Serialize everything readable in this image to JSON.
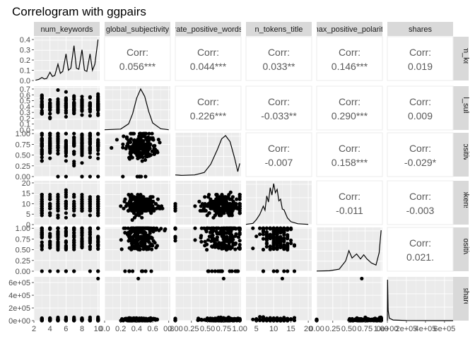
{
  "chart_data": {
    "type": "scatter-matrix",
    "title": "Correlogram with ggpairs",
    "variables": [
      {
        "label_top": "num_keywords",
        "label_right": "num_keywo",
        "range": [
          2,
          10.2
        ],
        "ticks": [
          2,
          4,
          6,
          8,
          10
        ],
        "tick_labels": [
          "2",
          "4",
          "6",
          "8",
          "10"
        ],
        "discrete": true
      },
      {
        "label_top": "global_subjectivity",
        "label_right": "bal_subject",
        "range": [
          0,
          0.82
        ],
        "ticks": [
          0,
          0.2,
          0.4,
          0.6,
          0.8
        ],
        "tick_labels": [
          "0.0",
          "0.2",
          "0.4",
          "0.6",
          "0.8"
        ]
      },
      {
        "label_top": "rate_positive_words",
        "label_right": "_positive_w",
        "range": [
          0,
          1.02
        ],
        "ticks": [
          0,
          0.25,
          0.5,
          0.75,
          1.0
        ],
        "tick_labels": [
          "0.00",
          "0.25",
          "0.50",
          "0.75",
          "1.00"
        ]
      },
      {
        "label_top": "n_tokens_title",
        "label_right": "_tokens_titl",
        "range": [
          2,
          21
        ],
        "ticks": [
          5,
          10,
          15,
          20
        ],
        "tick_labels": [
          "5",
          "10",
          "15",
          "20"
        ]
      },
      {
        "label_top": "max_positive_polarity",
        "label_right": "_positive_p",
        "range": [
          0,
          1.02
        ],
        "ticks": [
          0,
          0.25,
          0.5,
          0.75,
          1.0
        ],
        "tick_labels": [
          "0.00",
          "0.25",
          "0.50",
          "0.75",
          "1.00"
        ]
      },
      {
        "label_top": "shares",
        "label_right": "shares",
        "range": [
          0,
          690000
        ],
        "ticks": [
          0,
          200000,
          400000,
          600000
        ],
        "tick_labels": [
          "0e+00",
          "2e+05",
          "4e+05",
          "6e+05"
        ]
      }
    ],
    "x_ticks_bottom": [
      [
        "2",
        "4",
        "6",
        "8",
        "10"
      ],
      [
        "0.0",
        "0.2",
        "0.4",
        "0.6",
        "0.8"
      ],
      [
        "0.00",
        "0.25",
        "0.50",
        "0.75",
        "1.00"
      ],
      [
        "5",
        "10",
        "15",
        "20"
      ],
      [
        "0.00",
        "0.25",
        "0.50",
        "0.75",
        "1.00"
      ],
      [
        "0e+00",
        "2e+05",
        "4e+05",
        "6e+05"
      ]
    ],
    "y_ticks_left": [
      [
        "0.0",
        "0.1",
        "0.2",
        "0.3",
        "0.4"
      ],
      [
        "0.0",
        "0.1",
        "0.2",
        "0.3",
        "0.4",
        "0.5",
        "0.6",
        "0.7"
      ],
      [
        "0.00",
        "0.25",
        "0.50",
        "0.75",
        "1.00"
      ],
      [
        "0",
        "5",
        "10",
        "15",
        "20"
      ],
      [
        "0.00",
        "0.25",
        "0.50",
        "0.75",
        "1.00"
      ],
      [
        "0e+00",
        "2e+05",
        "4e+05",
        "6e+05"
      ]
    ],
    "correlations": [
      {
        "row": 0,
        "col": 1,
        "label": "Corr:",
        "value": "0.056***"
      },
      {
        "row": 0,
        "col": 2,
        "label": "Corr:",
        "value": "0.044***"
      },
      {
        "row": 0,
        "col": 3,
        "label": "Corr:",
        "value": "0.033**"
      },
      {
        "row": 0,
        "col": 4,
        "label": "Corr:",
        "value": "0.146***"
      },
      {
        "row": 0,
        "col": 5,
        "label": "Corr:",
        "value": "0.019"
      },
      {
        "row": 1,
        "col": 2,
        "label": "Corr:",
        "value": "0.226***"
      },
      {
        "row": 1,
        "col": 3,
        "label": "Corr:",
        "value": "-0.033**"
      },
      {
        "row": 1,
        "col": 4,
        "label": "Corr:",
        "value": "0.290***"
      },
      {
        "row": 1,
        "col": 5,
        "label": "Corr:",
        "value": "0.009"
      },
      {
        "row": 2,
        "col": 3,
        "label": "Corr:",
        "value": "-0.007"
      },
      {
        "row": 2,
        "col": 4,
        "label": "Corr:",
        "value": "0.158***"
      },
      {
        "row": 2,
        "col": 5,
        "label": "Corr:",
        "value": "-0.029*"
      },
      {
        "row": 3,
        "col": 4,
        "label": "Corr:",
        "value": "-0.011"
      },
      {
        "row": 3,
        "col": 5,
        "label": "Corr:",
        "value": "-0.003"
      },
      {
        "row": 4,
        "col": 5,
        "label": "Corr:",
        "value": "0.021."
      }
    ],
    "densities": [
      {
        "var": 0,
        "ylim": [
          0,
          0.4
        ],
        "points": [
          [
            2.2,
            0.003
          ],
          [
            2.6,
            0.01
          ],
          [
            3,
            0.03
          ],
          [
            3.3,
            0.015
          ],
          [
            3.6,
            0.02
          ],
          [
            4,
            0.08
          ],
          [
            4.3,
            0.04
          ],
          [
            4.6,
            0.05
          ],
          [
            5,
            0.16
          ],
          [
            5.3,
            0.07
          ],
          [
            5.6,
            0.09
          ],
          [
            6,
            0.26
          ],
          [
            6.3,
            0.1
          ],
          [
            6.6,
            0.12
          ],
          [
            7,
            0.34
          ],
          [
            7.3,
            0.12
          ],
          [
            7.6,
            0.11
          ],
          [
            8,
            0.3
          ],
          [
            8.3,
            0.1
          ],
          [
            8.6,
            0.09
          ],
          [
            9,
            0.26
          ],
          [
            9.3,
            0.1
          ],
          [
            9.6,
            0.16
          ],
          [
            10,
            0.4
          ]
        ]
      },
      {
        "var": 1,
        "ylim": [
          0,
          1
        ],
        "points": [
          [
            0,
            0.005
          ],
          [
            0.2,
            0.02
          ],
          [
            0.3,
            0.15
          ],
          [
            0.35,
            0.4
          ],
          [
            0.4,
            0.78
          ],
          [
            0.45,
            1.0
          ],
          [
            0.5,
            0.82
          ],
          [
            0.55,
            0.45
          ],
          [
            0.6,
            0.17
          ],
          [
            0.7,
            0.03
          ],
          [
            0.8,
            0.005
          ]
        ]
      },
      {
        "var": 2,
        "ylim": [
          0,
          1
        ],
        "points": [
          [
            0,
            0.04
          ],
          [
            0.1,
            0.03
          ],
          [
            0.3,
            0.04
          ],
          [
            0.45,
            0.1
          ],
          [
            0.55,
            0.3
          ],
          [
            0.65,
            0.65
          ],
          [
            0.72,
            0.92
          ],
          [
            0.78,
            1.0
          ],
          [
            0.85,
            0.85
          ],
          [
            0.92,
            0.45
          ],
          [
            0.97,
            0.12
          ],
          [
            1.0,
            0.32
          ]
        ]
      },
      {
        "var": 3,
        "ylim": [
          0,
          1
        ],
        "points": [
          [
            2,
            0.005
          ],
          [
            4,
            0.03
          ],
          [
            5,
            0.12
          ],
          [
            6,
            0.25
          ],
          [
            7,
            0.45
          ],
          [
            7.5,
            0.35
          ],
          [
            8,
            0.7
          ],
          [
            8.5,
            0.55
          ],
          [
            9,
            0.9
          ],
          [
            9.5,
            0.72
          ],
          [
            10,
            1.0
          ],
          [
            10.5,
            0.78
          ],
          [
            11,
            0.86
          ],
          [
            11.5,
            0.58
          ],
          [
            12,
            0.62
          ],
          [
            12.5,
            0.38
          ],
          [
            13,
            0.36
          ],
          [
            14,
            0.16
          ],
          [
            15,
            0.07
          ],
          [
            17,
            0.02
          ],
          [
            20,
            0.005
          ]
        ]
      },
      {
        "var": 4,
        "ylim": [
          0,
          1
        ],
        "points": [
          [
            0,
            0.003
          ],
          [
            0.2,
            0.01
          ],
          [
            0.35,
            0.05
          ],
          [
            0.45,
            0.25
          ],
          [
            0.5,
            0.5
          ],
          [
            0.55,
            0.32
          ],
          [
            0.62,
            0.42
          ],
          [
            0.68,
            0.3
          ],
          [
            0.73,
            0.4
          ],
          [
            0.78,
            0.3
          ],
          [
            0.85,
            0.2
          ],
          [
            0.92,
            0.15
          ],
          [
            0.97,
            0.45
          ],
          [
            1.0,
            1.0
          ]
        ]
      },
      {
        "var": 5,
        "ylim": [
          0,
          1
        ],
        "points": [
          [
            0,
            0
          ],
          [
            2000,
            1.0
          ],
          [
            8000,
            0.25
          ],
          [
            20000,
            0.06
          ],
          [
            60000,
            0.015
          ],
          [
            200000,
            0.004
          ],
          [
            690000,
            0.0
          ]
        ]
      }
    ]
  }
}
